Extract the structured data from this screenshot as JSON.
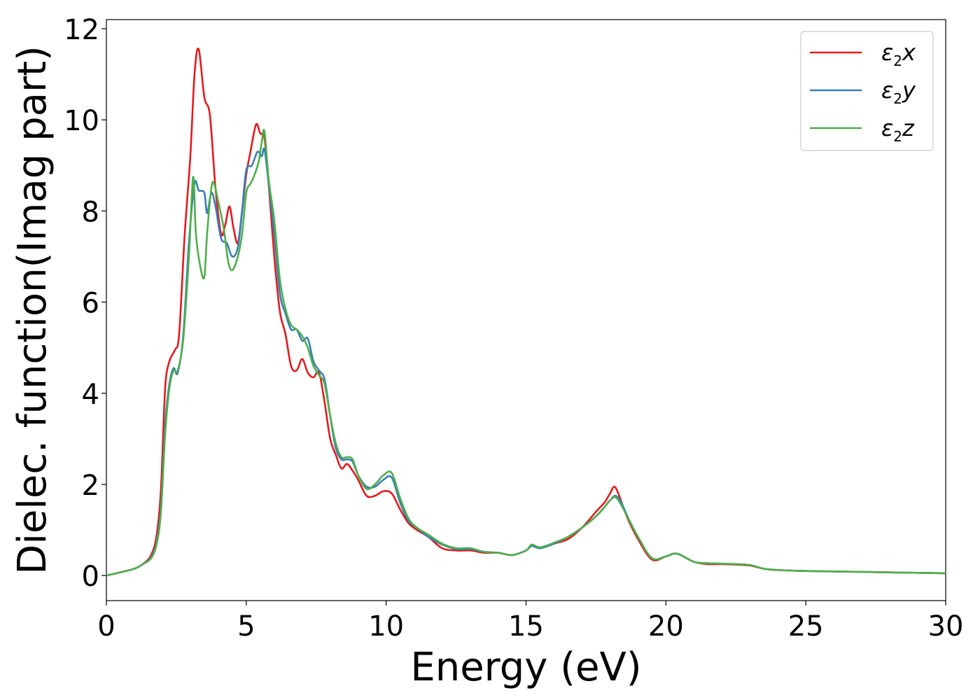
{
  "chart_data": {
    "type": "line",
    "xlabel": "Energy (eV)",
    "ylabel": "Dielec. function(Imag part)",
    "xlim": [
      0,
      30
    ],
    "ylim": [
      -0.55,
      12.2
    ],
    "xticks": [
      0,
      5,
      10,
      15,
      20,
      25,
      30
    ],
    "yticks": [
      0,
      2,
      4,
      6,
      8,
      10,
      12
    ],
    "grid": false,
    "legend_position": "top-right",
    "series": [
      {
        "name": "ε2x",
        "legend": {
          "base": "ε",
          "sub": "2",
          "var": "x"
        },
        "color": "#e41a1c",
        "x": [
          0,
          0.5,
          1.0,
          1.3,
          1.6,
          1.8,
          1.95,
          2.1,
          2.25,
          2.45,
          2.6,
          2.8,
          3.0,
          3.15,
          3.3,
          3.5,
          3.7,
          3.9,
          4.1,
          4.25,
          4.4,
          4.55,
          4.7,
          4.85,
          5.0,
          5.15,
          5.35,
          5.5,
          5.65,
          5.8,
          6.0,
          6.2,
          6.4,
          6.6,
          6.8,
          7.0,
          7.2,
          7.4,
          7.6,
          7.8,
          8.0,
          8.2,
          8.4,
          8.6,
          8.8,
          9.0,
          9.3,
          9.6,
          9.9,
          10.2,
          10.5,
          10.8,
          11.1,
          11.5,
          12.0,
          12.5,
          13.0,
          13.5,
          14.0,
          14.5,
          15.0,
          15.2,
          15.5,
          16.0,
          16.5,
          17.0,
          17.5,
          17.8,
          18.0,
          18.15,
          18.3,
          18.6,
          19.0,
          19.5,
          20.0,
          20.4,
          21.0,
          21.5,
          22.0,
          22.5,
          23.0,
          23.5,
          24,
          25,
          26,
          27,
          28,
          30
        ],
        "y": [
          0,
          0.07,
          0.15,
          0.25,
          0.45,
          0.9,
          1.9,
          4.1,
          4.7,
          4.95,
          5.3,
          7.5,
          9.2,
          11.0,
          11.55,
          10.5,
          10.1,
          8.5,
          7.5,
          7.7,
          8.1,
          7.6,
          7.3,
          8.0,
          8.8,
          9.3,
          9.9,
          9.7,
          9.6,
          8.6,
          7.0,
          5.8,
          5.3,
          4.6,
          4.5,
          4.75,
          4.45,
          4.35,
          4.45,
          3.8,
          3.0,
          2.65,
          2.35,
          2.45,
          2.3,
          2.1,
          1.75,
          1.75,
          1.85,
          1.8,
          1.45,
          1.15,
          1.0,
          0.85,
          0.6,
          0.55,
          0.55,
          0.5,
          0.5,
          0.45,
          0.55,
          0.65,
          0.6,
          0.7,
          0.8,
          1.05,
          1.4,
          1.6,
          1.8,
          1.95,
          1.8,
          1.3,
          0.8,
          0.35,
          0.42,
          0.48,
          0.3,
          0.25,
          0.25,
          0.24,
          0.22,
          0.15,
          0.12,
          0.1,
          0.09,
          0.08,
          0.07,
          0.05
        ]
      },
      {
        "name": "ε2y",
        "legend": {
          "base": "ε",
          "sub": "2",
          "var": "y"
        },
        "color": "#377eb8",
        "x": [
          0,
          0.5,
          1.0,
          1.3,
          1.6,
          1.8,
          1.95,
          2.1,
          2.25,
          2.4,
          2.55,
          2.75,
          2.95,
          3.15,
          3.3,
          3.5,
          3.6,
          3.75,
          3.9,
          4.1,
          4.3,
          4.5,
          4.7,
          4.85,
          5.0,
          5.2,
          5.4,
          5.55,
          5.65,
          5.8,
          6.0,
          6.2,
          6.4,
          6.6,
          6.8,
          7.0,
          7.2,
          7.4,
          7.6,
          7.8,
          8.0,
          8.2,
          8.4,
          8.6,
          8.8,
          9.0,
          9.3,
          9.6,
          9.9,
          10.2,
          10.5,
          10.8,
          11.1,
          11.5,
          12.0,
          12.5,
          13.0,
          13.5,
          14.0,
          14.5,
          15.0,
          15.2,
          15.5,
          16.0,
          16.5,
          17.0,
          17.5,
          17.8,
          18.0,
          18.2,
          18.4,
          18.7,
          19.0,
          19.5,
          20.0,
          20.4,
          21.0,
          21.5,
          22.0,
          22.5,
          23.0,
          23.5,
          24,
          25,
          26,
          27,
          28,
          30
        ],
        "y": [
          0,
          0.07,
          0.15,
          0.25,
          0.4,
          0.75,
          1.5,
          3.3,
          4.2,
          4.55,
          4.45,
          5.3,
          7.3,
          8.6,
          8.45,
          8.4,
          7.95,
          8.4,
          8.1,
          7.4,
          7.3,
          7.0,
          7.2,
          8.0,
          8.9,
          9.0,
          9.3,
          9.2,
          9.35,
          8.6,
          7.5,
          6.2,
          5.75,
          5.4,
          5.4,
          5.15,
          5.2,
          4.7,
          4.5,
          4.3,
          3.5,
          2.8,
          2.55,
          2.55,
          2.5,
          2.2,
          1.95,
          1.95,
          2.1,
          2.15,
          1.6,
          1.2,
          1.05,
          0.85,
          0.68,
          0.58,
          0.58,
          0.52,
          0.5,
          0.45,
          0.55,
          0.65,
          0.6,
          0.7,
          0.85,
          1.05,
          1.3,
          1.5,
          1.65,
          1.75,
          1.6,
          1.2,
          0.85,
          0.38,
          0.42,
          0.48,
          0.3,
          0.27,
          0.26,
          0.25,
          0.23,
          0.15,
          0.12,
          0.1,
          0.09,
          0.08,
          0.07,
          0.05
        ]
      },
      {
        "name": "ε2z",
        "legend": {
          "base": "ε",
          "sub": "2",
          "var": "z"
        },
        "color": "#4daf4a",
        "x": [
          0,
          0.5,
          1.0,
          1.3,
          1.6,
          1.8,
          1.95,
          2.1,
          2.25,
          2.4,
          2.55,
          2.75,
          2.95,
          3.1,
          3.2,
          3.35,
          3.5,
          3.6,
          3.75,
          3.85,
          4.0,
          4.2,
          4.35,
          4.5,
          4.7,
          4.85,
          5.0,
          5.15,
          5.3,
          5.45,
          5.55,
          5.65,
          5.8,
          6.0,
          6.2,
          6.4,
          6.6,
          6.8,
          7.0,
          7.2,
          7.4,
          7.6,
          7.8,
          8.0,
          8.2,
          8.4,
          8.6,
          8.8,
          9.0,
          9.3,
          9.6,
          9.9,
          10.2,
          10.5,
          10.8,
          11.1,
          11.5,
          12.0,
          12.5,
          13.0,
          13.5,
          14.0,
          14.5,
          15.0,
          15.2,
          15.5,
          16.0,
          16.5,
          17.0,
          17.5,
          17.8,
          18.0,
          18.2,
          18.4,
          18.7,
          19.0,
          19.5,
          20.0,
          20.4,
          21.0,
          21.5,
          22.0,
          22.5,
          23.0,
          23.5,
          24,
          25,
          26,
          27,
          28,
          30
        ],
        "y": [
          0,
          0.07,
          0.15,
          0.25,
          0.38,
          0.7,
          1.4,
          3.1,
          4.1,
          4.5,
          4.5,
          5.2,
          7.0,
          8.75,
          7.5,
          6.8,
          6.55,
          7.5,
          8.5,
          8.6,
          8.2,
          7.6,
          6.9,
          6.7,
          7.0,
          7.5,
          8.4,
          8.6,
          8.8,
          9.1,
          9.5,
          9.75,
          8.7,
          7.8,
          6.5,
          5.85,
          5.5,
          5.4,
          5.25,
          5.0,
          4.6,
          4.4,
          4.2,
          3.5,
          2.9,
          2.6,
          2.6,
          2.55,
          2.2,
          1.9,
          2.0,
          2.2,
          2.25,
          1.7,
          1.25,
          1.05,
          0.9,
          0.7,
          0.6,
          0.6,
          0.52,
          0.5,
          0.45,
          0.55,
          0.68,
          0.62,
          0.72,
          0.85,
          1.05,
          1.3,
          1.5,
          1.65,
          1.72,
          1.55,
          1.2,
          0.85,
          0.38,
          0.42,
          0.48,
          0.3,
          0.27,
          0.26,
          0.25,
          0.23,
          0.15,
          0.12,
          0.1,
          0.09,
          0.08,
          0.07,
          0.05
        ]
      }
    ]
  }
}
